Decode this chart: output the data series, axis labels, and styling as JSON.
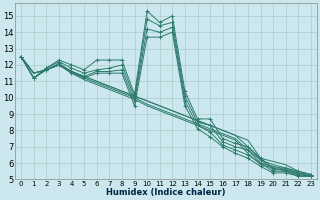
{
  "xlabel": "Humidex (Indice chaleur)",
  "background_color": "#cce8ee",
  "grid_color": "#aacccc",
  "line_color": "#2d7a6e",
  "xlim": [
    -0.5,
    23.5
  ],
  "ylim": [
    5,
    15.8
  ],
  "yticks": [
    5,
    6,
    7,
    8,
    9,
    10,
    11,
    12,
    13,
    14,
    15
  ],
  "xticks": [
    0,
    1,
    2,
    3,
    4,
    5,
    6,
    7,
    8,
    9,
    10,
    11,
    12,
    13,
    14,
    15,
    16,
    17,
    18,
    19,
    20,
    21,
    22,
    23
  ],
  "series": [
    [
      12.5,
      11.2,
      11.8,
      12.3,
      12.0,
      11.7,
      12.3,
      12.3,
      12.3,
      10.2,
      15.3,
      14.6,
      15.0,
      10.4,
      8.7,
      8.7,
      7.5,
      7.2,
      7.0,
      6.3,
      5.7,
      5.7,
      5.5,
      5.3
    ],
    [
      12.5,
      11.2,
      11.8,
      12.2,
      11.8,
      11.5,
      11.7,
      11.8,
      12.0,
      10.0,
      14.8,
      14.4,
      14.6,
      10.1,
      8.5,
      8.3,
      7.3,
      7.0,
      6.8,
      6.2,
      5.6,
      5.6,
      5.4,
      5.3
    ],
    [
      12.5,
      11.2,
      11.7,
      12.1,
      11.6,
      11.3,
      11.6,
      11.6,
      11.7,
      9.8,
      14.2,
      14.0,
      14.3,
      9.8,
      8.3,
      7.9,
      7.1,
      6.8,
      6.5,
      6.0,
      5.5,
      5.5,
      5.3,
      5.2
    ],
    [
      12.5,
      11.2,
      11.7,
      12.0,
      11.5,
      11.2,
      11.5,
      11.5,
      11.5,
      9.5,
      13.7,
      13.7,
      14.0,
      9.5,
      8.1,
      7.6,
      7.0,
      6.6,
      6.3,
      5.8,
      5.4,
      5.4,
      5.2,
      5.2
    ]
  ],
  "descending_series": [
    [
      12.5,
      11.5,
      11.7,
      12.0,
      11.6,
      11.3,
      11.0,
      10.7,
      10.4,
      10.1,
      9.8,
      9.5,
      9.2,
      8.9,
      8.6,
      8.3,
      8.0,
      7.7,
      7.4,
      6.3,
      6.1,
      5.9,
      5.5,
      5.3
    ],
    [
      12.5,
      11.5,
      11.7,
      12.0,
      11.6,
      11.3,
      11.0,
      10.7,
      10.4,
      10.1,
      9.8,
      9.5,
      9.2,
      8.9,
      8.6,
      8.3,
      8.0,
      7.7,
      7.0,
      6.2,
      5.9,
      5.7,
      5.4,
      5.2
    ],
    [
      12.5,
      11.5,
      11.7,
      12.0,
      11.6,
      11.2,
      10.9,
      10.6,
      10.3,
      10.0,
      9.6,
      9.3,
      9.0,
      8.7,
      8.4,
      8.1,
      7.8,
      7.5,
      6.8,
      6.0,
      5.8,
      5.6,
      5.3,
      5.2
    ],
    [
      12.5,
      11.5,
      11.7,
      12.0,
      11.5,
      11.1,
      10.8,
      10.5,
      10.2,
      9.9,
      9.5,
      9.2,
      8.9,
      8.6,
      8.3,
      8.0,
      7.7,
      7.4,
      6.6,
      5.9,
      5.7,
      5.5,
      5.2,
      5.2
    ]
  ]
}
